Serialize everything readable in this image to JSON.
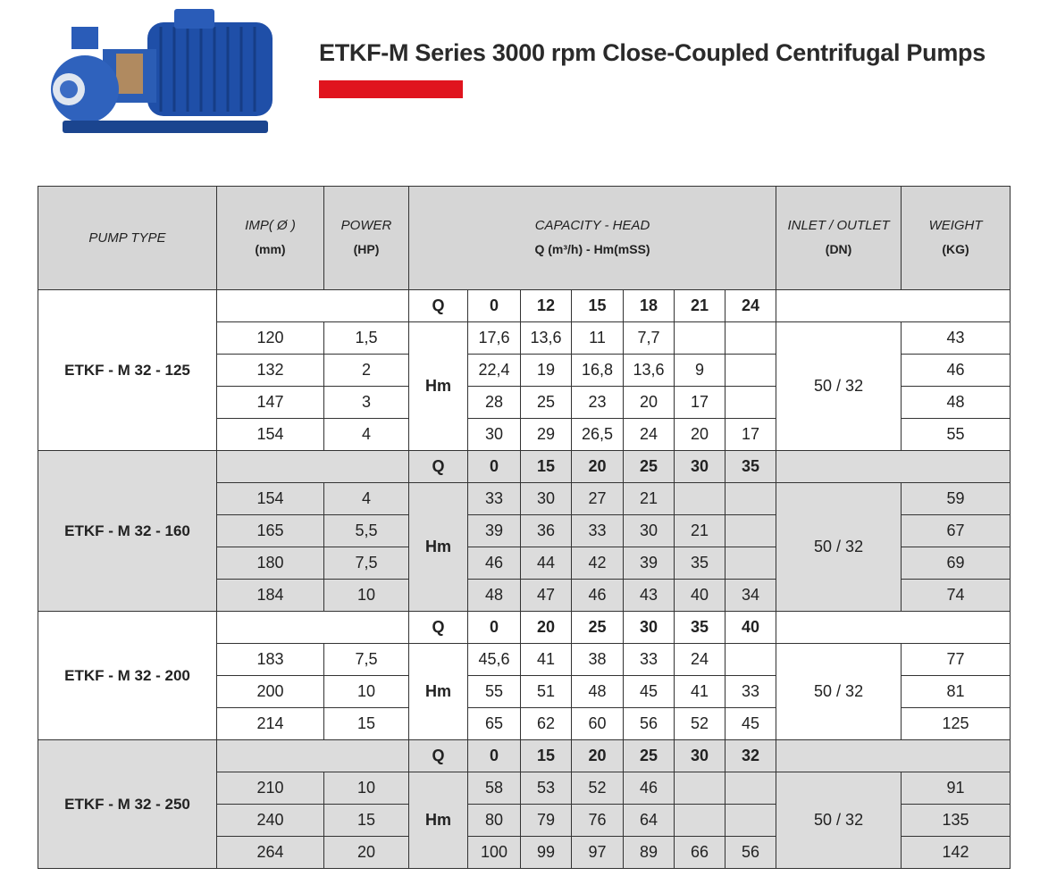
{
  "title": "ETKF-M Series 3000 rpm Close-Coupled Centrifugal Pumps",
  "brand_color": "#e0141e",
  "header": {
    "pump_type": "PUMP TYPE",
    "imp": "IMP( Ø )",
    "imp_unit": "(mm)",
    "power": "POWER",
    "power_unit": "(HP)",
    "capacity": "CAPACITY - HEAD",
    "capacity_unit": "Q (m³/h) - Hm(mSS)",
    "inlet": "INLET / OUTLET",
    "inlet_unit": "(DN)",
    "weight": "WEIGHT",
    "weight_unit": "(KG)"
  },
  "q_label": "Q",
  "hm_label": "Hm",
  "groups": [
    {
      "model": "ETKF - M 32 - 125",
      "q": [
        "0",
        "12",
        "15",
        "18",
        "21",
        "24"
      ],
      "inlet": "50 / 32",
      "rows": [
        {
          "imp": "120",
          "power": "1,5",
          "hm": [
            "17,6",
            "13,6",
            "11",
            "7,7",
            "",
            ""
          ],
          "weight": "43"
        },
        {
          "imp": "132",
          "power": "2",
          "hm": [
            "22,4",
            "19",
            "16,8",
            "13,6",
            "9",
            ""
          ],
          "weight": "46"
        },
        {
          "imp": "147",
          "power": "3",
          "hm": [
            "28",
            "25",
            "23",
            "20",
            "17",
            ""
          ],
          "weight": "48"
        },
        {
          "imp": "154",
          "power": "4",
          "hm": [
            "30",
            "29",
            "26,5",
            "24",
            "20",
            "17"
          ],
          "weight": "55"
        }
      ]
    },
    {
      "model": "ETKF - M 32 - 160",
      "q": [
        "0",
        "15",
        "20",
        "25",
        "30",
        "35"
      ],
      "inlet": "50 / 32",
      "rows": [
        {
          "imp": "154",
          "power": "4",
          "hm": [
            "33",
            "30",
            "27",
            "21",
            "",
            ""
          ],
          "weight": "59"
        },
        {
          "imp": "165",
          "power": "5,5",
          "hm": [
            "39",
            "36",
            "33",
            "30",
            "21",
            ""
          ],
          "weight": "67"
        },
        {
          "imp": "180",
          "power": "7,5",
          "hm": [
            "46",
            "44",
            "42",
            "39",
            "35",
            ""
          ],
          "weight": "69"
        },
        {
          "imp": "184",
          "power": "10",
          "hm": [
            "48",
            "47",
            "46",
            "43",
            "40",
            "34"
          ],
          "weight": "74"
        }
      ]
    },
    {
      "model": "ETKF - M 32 - 200",
      "q": [
        "0",
        "20",
        "25",
        "30",
        "35",
        "40"
      ],
      "inlet": "50 / 32",
      "rows": [
        {
          "imp": "183",
          "power": "7,5",
          "hm": [
            "45,6",
            "41",
            "38",
            "33",
            "24",
            ""
          ],
          "weight": "77"
        },
        {
          "imp": "200",
          "power": "10",
          "hm": [
            "55",
            "51",
            "48",
            "45",
            "41",
            "33"
          ],
          "weight": "81"
        },
        {
          "imp": "214",
          "power": "15",
          "hm": [
            "65",
            "62",
            "60",
            "56",
            "52",
            "45"
          ],
          "weight": "125"
        }
      ]
    },
    {
      "model": "ETKF - M 32 - 250",
      "q": [
        "0",
        "15",
        "20",
        "25",
        "30",
        "32"
      ],
      "inlet": "50 / 32",
      "rows": [
        {
          "imp": "210",
          "power": "10",
          "hm": [
            "58",
            "53",
            "52",
            "46",
            "",
            ""
          ],
          "weight": "91"
        },
        {
          "imp": "240",
          "power": "15",
          "hm": [
            "80",
            "79",
            "76",
            "64",
            "",
            ""
          ],
          "weight": "135"
        },
        {
          "imp": "264",
          "power": "20",
          "hm": [
            "100",
            "99",
            "97",
            "89",
            "66",
            "56"
          ],
          "weight": "142"
        }
      ]
    }
  ]
}
